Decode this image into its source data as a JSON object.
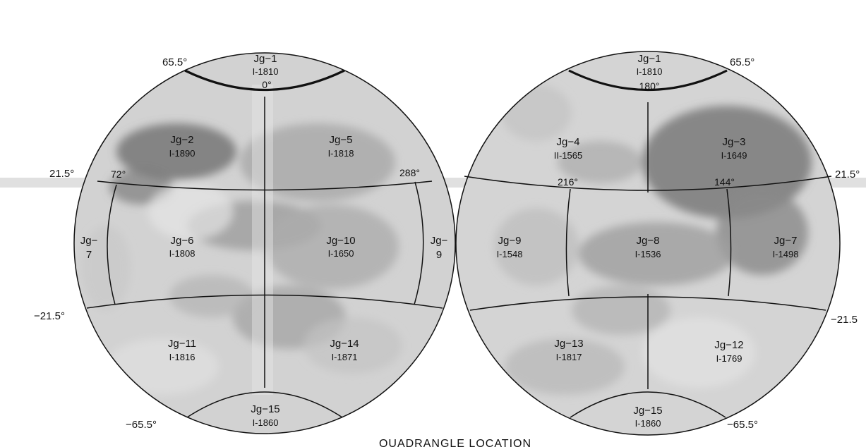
{
  "caption": "QUADRANGLE LOCATION",
  "colors": {
    "surface_light": "#d6d6d6",
    "surface_mid": "#bdbdbd",
    "surface_dark": "#8e8e8e",
    "boundary": "#111111",
    "smear": "#cfcfcf"
  },
  "hemispheres": [
    {
      "id": "left",
      "latitude_labels": {
        "north_polar": "65.5°",
        "north_mid": "21.5°",
        "south_mid": "−21.5°",
        "south_polar": "−65.5°"
      },
      "longitude_labels": [
        "0°",
        "72°",
        "288°"
      ],
      "quadrangles": [
        {
          "name": "Jg−1",
          "code": "I-1810",
          "extra": "0°"
        },
        {
          "name": "Jg−2",
          "code": "I-1890"
        },
        {
          "name": "Jg−5",
          "code": "I-1818"
        },
        {
          "name": "Jg−",
          "code": "7"
        },
        {
          "name": "Jg−6",
          "code": "I-1808"
        },
        {
          "name": "Jg−10",
          "code": "I-1650"
        },
        {
          "name": "Jg−",
          "code": "9"
        },
        {
          "name": "Jg−11",
          "code": "I-1816"
        },
        {
          "name": "Jg−14",
          "code": "I-1871"
        },
        {
          "name": "Jg−15",
          "code": "I-1860"
        }
      ]
    },
    {
      "id": "right",
      "latitude_labels": {
        "north_polar": "65.5°",
        "north_mid": "21.5°",
        "south_mid": "−21.5",
        "south_polar": "−65.5°"
      },
      "longitude_labels": [
        "180°",
        "216°",
        "144°"
      ],
      "quadrangles": [
        {
          "name": "Jg−1",
          "code": "I-1810",
          "extra": "180°"
        },
        {
          "name": "Jg−4",
          "code": "II-1565"
        },
        {
          "name": "Jg−3",
          "code": "I-1649"
        },
        {
          "name": "Jg−9",
          "code": "I-1548"
        },
        {
          "name": "Jg−8",
          "code": "I-1536"
        },
        {
          "name": "Jg−7",
          "code": "I-1498"
        },
        {
          "name": "Jg−13",
          "code": "I-1817"
        },
        {
          "name": "Jg−12",
          "code": "I-1769"
        },
        {
          "name": "Jg−15",
          "code": "I-1860"
        }
      ]
    }
  ]
}
